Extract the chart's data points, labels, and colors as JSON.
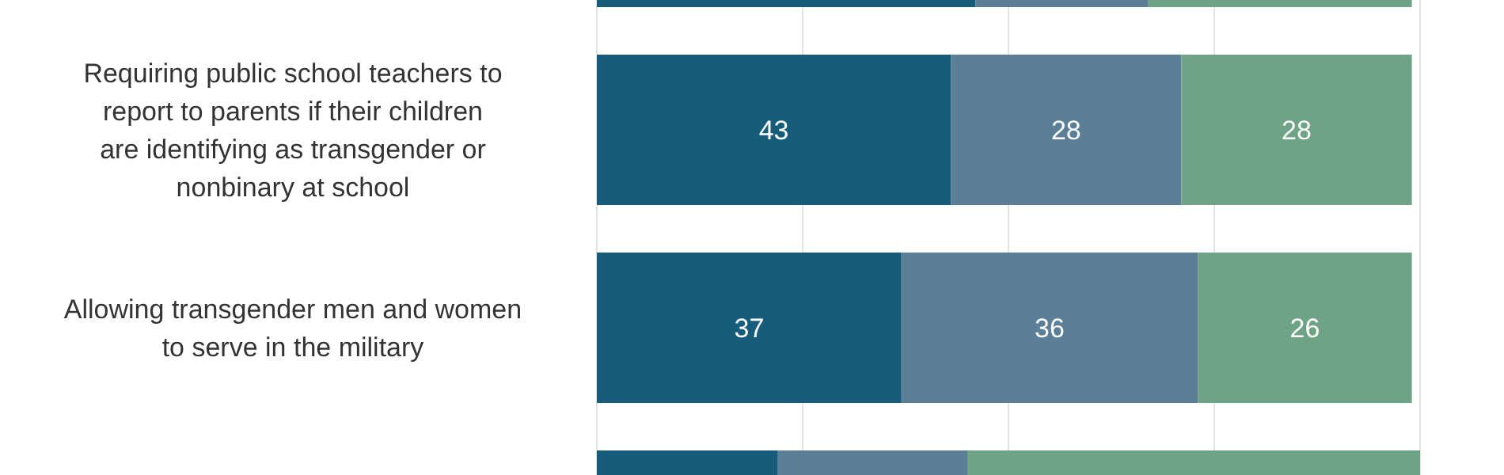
{
  "chart_data": {
    "type": "bar",
    "orientation": "horizontal",
    "stacked": true,
    "categories": [
      null,
      "Requiring public school teachers to report to parents if their children are identifying as transgender or nonbinary at school",
      "Allowing transgender men and women to serve in the military",
      null
    ],
    "series": [
      {
        "color": "#185c7c",
        "values": [
          46,
          43,
          37,
          22
        ],
        "value_labels": [
          null,
          "43",
          "37",
          null
        ]
      },
      {
        "color": "#5b7f96",
        "values": [
          21,
          28,
          36,
          23
        ],
        "value_labels": [
          null,
          "28",
          "36",
          null
        ]
      },
      {
        "color": "#6fa386",
        "values": [
          32,
          28,
          26,
          55
        ],
        "value_labels": [
          null,
          "28",
          "26",
          null
        ]
      }
    ],
    "xlim": [
      0,
      100
    ],
    "xticks": [
      {
        "value": 0,
        "label": null
      },
      {
        "value": 25,
        "label": null
      },
      {
        "value": 50,
        "label": null
      },
      {
        "value": 75,
        "label": null
      },
      {
        "value": 100,
        "label": null
      }
    ],
    "grid": "x",
    "tick_labels": "y"
  }
}
